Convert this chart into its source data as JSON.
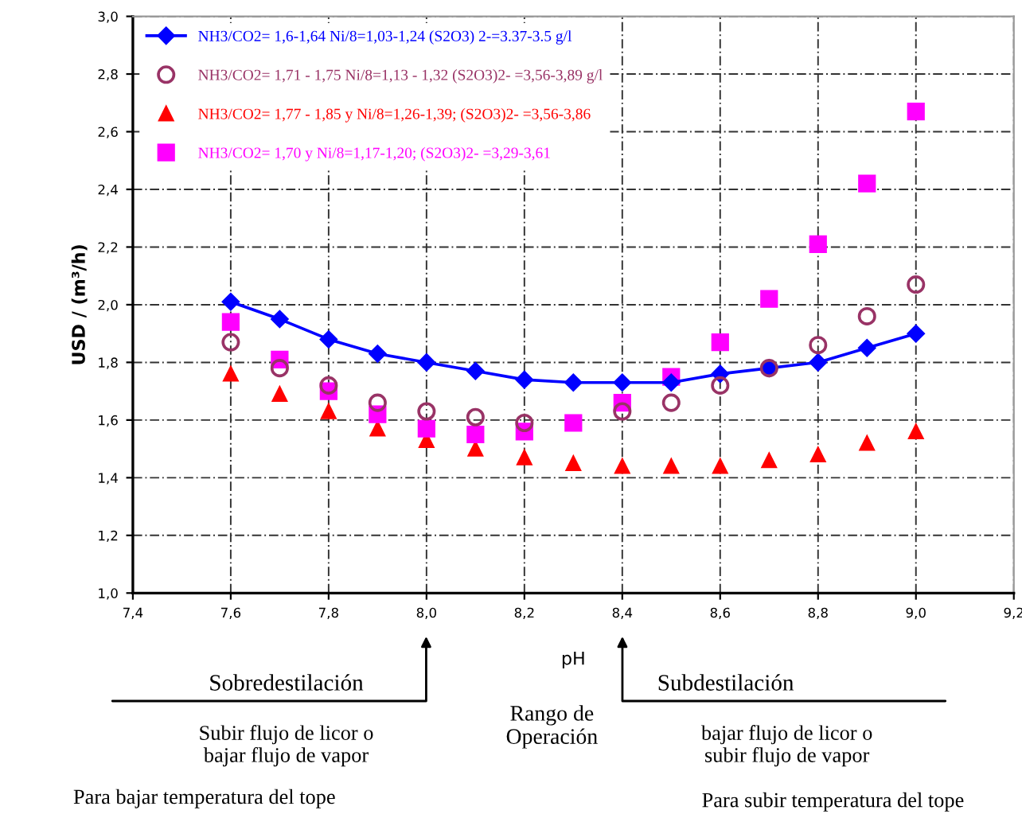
{
  "chart_data": {
    "type": "scatter",
    "x": [
      7.6,
      7.7,
      7.8,
      7.9,
      8.0,
      8.1,
      8.2,
      8.3,
      8.4,
      8.5,
      8.6,
      8.7,
      8.8,
      8.9,
      9.0
    ],
    "series": [
      {
        "name": "NH3/CO2= 1,6-1,64 Ni/8=1,03-1,24 (S2O3) 2-=3.37-3.5 g/l",
        "type": "line",
        "marker": "diamond",
        "color": "#0000ff",
        "values": [
          2.01,
          1.95,
          1.88,
          1.83,
          1.8,
          1.77,
          1.74,
          1.73,
          1.73,
          1.73,
          1.76,
          1.78,
          1.8,
          1.85,
          1.9
        ]
      },
      {
        "name": "NH3/CO2= 1,71 - 1,75 Ni/8=1,13 - 1,32 (S2O3)2- =3,56-3,89 g/l",
        "marker": "circle",
        "color": "#993366",
        "values": [
          1.87,
          1.78,
          1.72,
          1.66,
          1.63,
          1.61,
          1.59,
          null,
          1.63,
          1.66,
          1.72,
          1.78,
          1.86,
          1.96,
          2.07
        ]
      },
      {
        "name": "NH3/CO2= 1,77 - 1,85 y Ni/8=1,26-1,39; (S2O3)2- =3,56-3,86",
        "marker": "triangle",
        "color": "#ff0000",
        "values": [
          1.76,
          1.69,
          1.63,
          1.57,
          1.53,
          1.5,
          1.47,
          1.45,
          1.44,
          1.44,
          1.44,
          1.46,
          1.48,
          1.52,
          1.56
        ]
      },
      {
        "name": "NH3/CO2= 1,70 y Ni/8=1,17-1,20; (S2O3)2- =3,29-3,61",
        "marker": "square",
        "color": "#ff00ff",
        "values": [
          1.94,
          1.81,
          1.7,
          1.62,
          1.57,
          1.55,
          1.56,
          1.59,
          1.66,
          1.75,
          1.87,
          2.02,
          2.21,
          2.42,
          2.67
        ]
      }
    ],
    "xlabel": "pH",
    "ylabel": "USD / (m³/h)",
    "xlim": [
      7.4,
      9.2
    ],
    "xticks": [
      {
        "value": 7.4,
        "label": "7,4"
      },
      {
        "value": 7.6,
        "label": "7,6"
      },
      {
        "value": 7.8,
        "label": "7,8"
      },
      {
        "value": 8.0,
        "label": "8,0"
      },
      {
        "value": 8.2,
        "label": "8,2"
      },
      {
        "value": 8.4,
        "label": "8,4"
      },
      {
        "value": 8.6,
        "label": "8,6"
      },
      {
        "value": 8.8,
        "label": "8,8"
      },
      {
        "value": 9.0,
        "label": "9,0"
      },
      {
        "value": 9.2,
        "label": "9,2"
      }
    ],
    "ylim": [
      1.0,
      3.0
    ],
    "yticks": [
      {
        "value": 1.0,
        "label": "1,0"
      },
      {
        "value": 1.2,
        "label": "1,2"
      },
      {
        "value": 1.4,
        "label": "1,4"
      },
      {
        "value": 1.6,
        "label": "1,6"
      },
      {
        "value": 1.8,
        "label": "1,8"
      },
      {
        "value": 2.0,
        "label": "2,0"
      },
      {
        "value": 2.2,
        "label": "2,2"
      },
      {
        "value": 2.4,
        "label": "2,4"
      },
      {
        "value": 2.6,
        "label": "2,6"
      },
      {
        "value": 2.8,
        "label": "2,8"
      },
      {
        "value": 3.0,
        "label": "3,0"
      }
    ],
    "grid": true,
    "legend": "top left",
    "annotations": [
      "Sobredestilación",
      "Subir flujo de licor o\nbajar flujo de vapor",
      "Para bajar temperatura del tope",
      "Rango de\nOperación",
      "Subdestilación",
      "bajar flujo de licor o\nsubir flujo de vapor",
      "Para subir temperatura del tope"
    ]
  }
}
